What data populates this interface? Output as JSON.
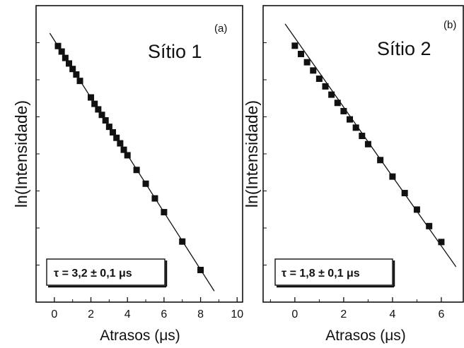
{
  "chart_data": [
    {
      "type": "scatter",
      "panel_label": "(a)",
      "site_label": "Sítio 1",
      "ylabel": "ln(Intensidade)",
      "xlabel": "Atrasos (μs)",
      "xlim": [
        -1.0,
        10.3
      ],
      "xticks": [
        0,
        2,
        4,
        6,
        8,
        10
      ],
      "yticks_labeled": false,
      "annotation": "τ = 3,2 ± 0,1 μs",
      "tau": 3.2,
      "x": [
        0.2,
        0.4,
        0.6,
        0.8,
        1.0,
        1.2,
        1.4,
        2.0,
        2.2,
        2.4,
        2.6,
        2.8,
        3.0,
        3.2,
        3.4,
        3.6,
        3.8,
        4.0,
        4.5,
        5.0,
        5.5,
        6.0,
        7.0,
        8.0
      ],
      "y": [
        -0.06,
        -0.12,
        -0.19,
        -0.25,
        -0.31,
        -0.37,
        -0.44,
        -0.62,
        -0.69,
        -0.75,
        -0.81,
        -0.87,
        -0.94,
        -1.0,
        -1.06,
        -1.12,
        -1.19,
        -1.25,
        -1.41,
        -1.56,
        -1.72,
        -1.87,
        -2.19,
        -2.5
      ],
      "fit": {
        "x": [
          -0.25,
          8.75
        ],
        "y": [
          0.08,
          -2.73
        ]
      }
    },
    {
      "type": "scatter",
      "panel_label": "(b)",
      "site_label": "Sítio 2",
      "ylabel": "ln(Intensidade)",
      "xlabel": "Atrasos (μs)",
      "xlim": [
        -1.3,
        6.9
      ],
      "xticks": [
        0,
        2,
        4,
        6
      ],
      "yticks_labeled": false,
      "annotation": "τ = 1,8 ± 0,1 μs",
      "tau": 1.8,
      "x": [
        0.0,
        0.25,
        0.5,
        0.75,
        1.0,
        1.25,
        1.5,
        1.75,
        2.0,
        2.25,
        2.5,
        2.75,
        3.0,
        3.5,
        4.0,
        4.5,
        5.0,
        5.5,
        6.0
      ],
      "y": [
        0.0,
        -0.14,
        -0.28,
        -0.42,
        -0.56,
        -0.69,
        -0.83,
        -0.97,
        -1.11,
        -1.25,
        -1.39,
        -1.53,
        -1.67,
        -1.94,
        -2.22,
        -2.5,
        -2.78,
        -3.06,
        -3.33
      ],
      "fit": {
        "x": [
          -0.4,
          6.6
        ],
        "y": [
          0.37,
          -3.75
        ]
      }
    }
  ]
}
